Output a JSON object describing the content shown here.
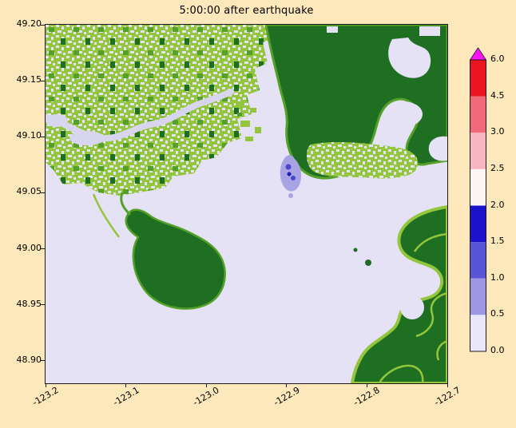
{
  "chart_data": {
    "type": "heatmap",
    "title": "5:00:00 after earthquake",
    "xlabel": "",
    "ylabel": "",
    "x_ticks": [
      "-123.2",
      "-123.1",
      "-123.0",
      "-122.9",
      "-122.8",
      "-122.7"
    ],
    "y_ticks": [
      "49.20",
      "49.15",
      "49.10",
      "49.05",
      "49.00",
      "48.95",
      "48.90"
    ],
    "xlim": [
      -123.2,
      -122.7
    ],
    "ylim": [
      48.88,
      49.2
    ],
    "grid": false,
    "colorbar": {
      "position": "right",
      "boundaries": [
        0.0,
        0.5,
        1.0,
        1.5,
        2.0,
        2.5,
        3.0,
        4.5,
        6.0
      ],
      "tick_labels": [
        "0.0",
        "0.5",
        "1.0",
        "1.5",
        "2.0",
        "2.5",
        "3.0",
        "4.5",
        "6.0"
      ],
      "colors": [
        "#e9e6f9",
        "#9d98e3",
        "#5a54d6",
        "#1b12cc",
        "#fdf5f5",
        "#f7b6c2",
        "#f0687a",
        "#ea1420"
      ],
      "over_color": "#fa14fa"
    },
    "map_legend": {
      "water_color": "#e4e2f4",
      "lowland_color": "#93c53d",
      "highland_color": "#1e6f22",
      "flood_depth_colors": [
        "#a8a4e4",
        "#4a46cc",
        "#1d18b8"
      ]
    }
  },
  "palette": {
    "page_bg": "#fce8ba",
    "water": "#e4e2f4",
    "river": "#d8d5ee",
    "land_low": "#93c53d",
    "land_mid": "#55a028",
    "land_high": "#1e6f22",
    "flood_light": "#a8a4e4",
    "flood_mid": "#4a46cc",
    "flood_deep": "#1d18b8",
    "spine": "#1a1a1a"
  }
}
